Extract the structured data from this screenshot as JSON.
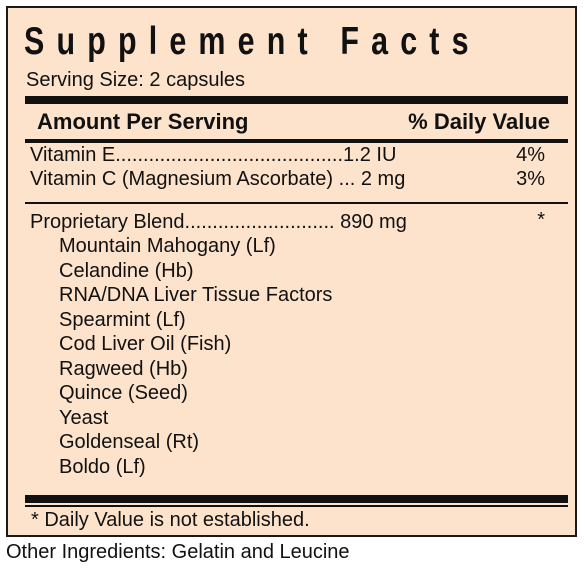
{
  "label": {
    "title": "Supplement Facts",
    "serving_size": "Serving Size: 2 capsules",
    "header_amount": "Amount Per Serving",
    "header_dv": "% Daily Value",
    "vitamins": [
      {
        "text": "Vitamin E.........................................1.2 IU",
        "dv": "4%"
      },
      {
        "text": "Vitamin C (Magnesium Ascorbate) ... 2 mg",
        "dv": "3%"
      }
    ],
    "blend": {
      "text": "Proprietary Blend........................... 890 mg",
      "dv": "*"
    },
    "blend_ingredients": [
      "Mountain Mahogany (Lf)",
      "Celandine (Hb)",
      "RNA/DNA Liver Tissue Factors",
      "Spearmint (Lf)",
      "Cod Liver Oil (Fish)",
      "Ragweed (Hb)",
      "Quince (Seed)",
      "Yeast",
      "Goldenseal (Rt)",
      "Boldo (Lf)"
    ],
    "footnote": "* Daily Value is not established.",
    "panel_color": "#fde3cc"
  },
  "other_ingredients": "Other Ingredients: Gelatin and Leucine"
}
